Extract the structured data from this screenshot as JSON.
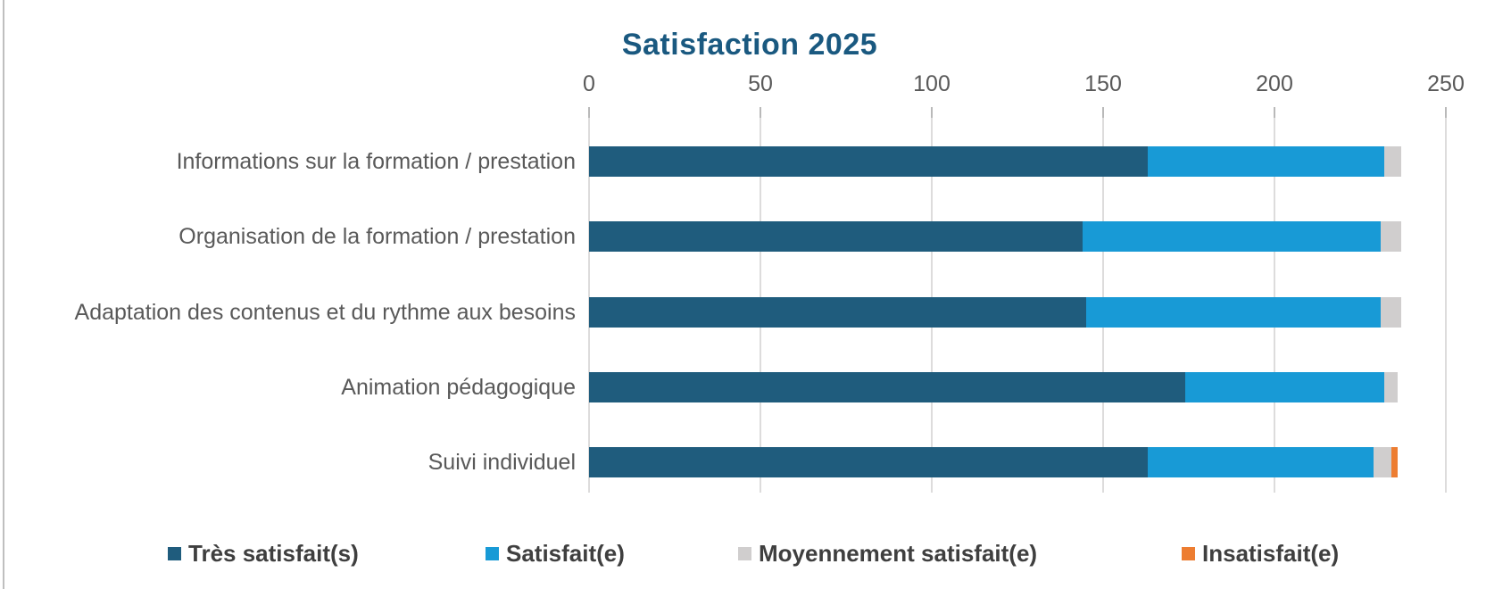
{
  "chart_data": {
    "type": "bar",
    "orientation": "horizontal",
    "stacked": true,
    "title": "Satisfaction 2025",
    "title_color": "#1a5980",
    "xlim": [
      0,
      250
    ],
    "xticks": [
      0,
      50,
      100,
      150,
      200,
      250
    ],
    "grid": true,
    "legend_position": "bottom",
    "categories": [
      "Informations sur la formation / prestation",
      "Organisation de la formation / prestation",
      "Adaptation des contenus et du rythme aux besoins",
      "Animation pédagogique",
      "Suivi individuel"
    ],
    "series": [
      {
        "name": "Très satisfait(s)",
        "color": "#1f5c7d",
        "values": [
          163,
          144,
          145,
          174,
          163
        ]
      },
      {
        "name": "Satisfait(e)",
        "color": "#189ad6",
        "values": [
          69,
          87,
          86,
          58,
          66
        ]
      },
      {
        "name": "Moyennement satisfait(e)",
        "color": "#d0cece",
        "values": [
          5,
          6,
          6,
          4,
          5
        ]
      },
      {
        "name": "Insatisfait(e)",
        "color": "#ed7d31",
        "values": [
          0,
          0,
          0,
          0,
          2
        ]
      }
    ]
  }
}
